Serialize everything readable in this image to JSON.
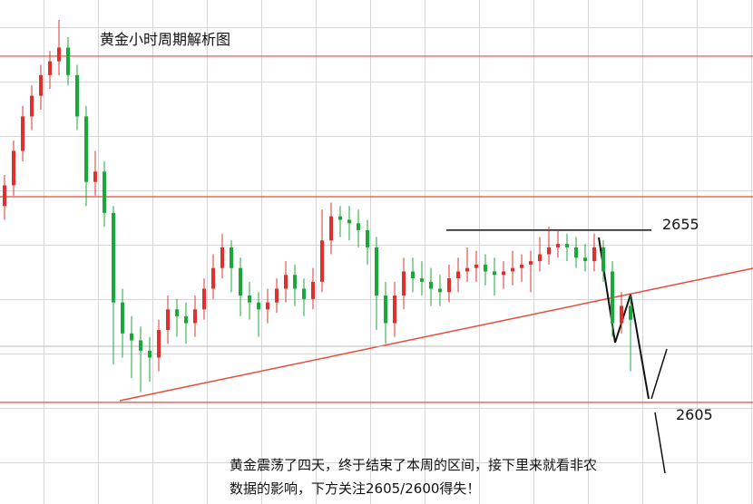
{
  "chart_data": {
    "type": "candlestick",
    "title": "黄金小时周期解析图",
    "annotation": [
      "黄金震荡了四天，终于结束了本周的区间，接下里来就看非农",
      "数据的影响，下方关注2605/2600得失！"
    ],
    "ylim": [
      2575.5,
      2721.8
    ],
    "levels": [
      2655,
      2605
    ],
    "hlines": [
      2705.5,
      2664.7
    ],
    "up_color": "#e0302e",
    "down_color": "#1aa83a",
    "candles": [
      [
        2662,
        2671,
        2658,
        2668
      ],
      [
        2668,
        2681,
        2665,
        2678
      ],
      [
        2678,
        2691,
        2675,
        2688
      ],
      [
        2688,
        2697,
        2684,
        2694
      ],
      [
        2694,
        2703,
        2690,
        2700
      ],
      [
        2700,
        2707,
        2696,
        2704
      ],
      [
        2704,
        2716,
        2700,
        2708
      ],
      [
        2708,
        2711,
        2697,
        2700
      ],
      [
        2700,
        2703,
        2684,
        2688
      ],
      [
        2688,
        2691,
        2662,
        2669
      ],
      [
        2669,
        2678,
        2665,
        2672
      ],
      [
        2672,
        2675,
        2656,
        2660
      ],
      [
        2660,
        2662,
        2616,
        2634
      ],
      [
        2634,
        2638,
        2618,
        2625
      ],
      [
        2625,
        2630,
        2612,
        2623
      ],
      [
        2623,
        2627,
        2608,
        2620
      ],
      [
        2620,
        2624,
        2611,
        2618
      ],
      [
        2618,
        2629,
        2614,
        2626
      ],
      [
        2626,
        2636,
        2622,
        2632
      ],
      [
        2632,
        2635,
        2624,
        2630
      ],
      [
        2630,
        2634,
        2622,
        2628
      ],
      [
        2628,
        2636,
        2624,
        2632
      ],
      [
        2632,
        2641,
        2629,
        2638
      ],
      [
        2638,
        2648,
        2635,
        2644
      ],
      [
        2644,
        2654,
        2641,
        2650
      ],
      [
        2650,
        2652,
        2637,
        2644
      ],
      [
        2644,
        2647,
        2630,
        2636
      ],
      [
        2636,
        2640,
        2629,
        2634
      ],
      [
        2634,
        2637,
        2624,
        2632
      ],
      [
        2632,
        2638,
        2628,
        2634
      ],
      [
        2634,
        2641,
        2631,
        2638
      ],
      [
        2638,
        2646,
        2634,
        2642
      ],
      [
        2642,
        2645,
        2633,
        2638
      ],
      [
        2638,
        2641,
        2630,
        2635
      ],
      [
        2635,
        2644,
        2632,
        2640
      ],
      [
        2640,
        2661,
        2637,
        2652
      ],
      [
        2652,
        2663,
        2648,
        2659
      ],
      [
        2659,
        2662,
        2653,
        2658
      ],
      [
        2658,
        2662,
        2652,
        2657
      ],
      [
        2657,
        2661,
        2650,
        2655
      ],
      [
        2655,
        2658,
        2645,
        2650
      ],
      [
        2650,
        2653,
        2626,
        2636
      ],
      [
        2636,
        2640,
        2622,
        2628
      ],
      [
        2628,
        2640,
        2624,
        2636
      ],
      [
        2636,
        2647,
        2632,
        2643
      ],
      [
        2643,
        2647,
        2637,
        2641
      ],
      [
        2641,
        2646,
        2636,
        2640
      ],
      [
        2640,
        2644,
        2633,
        2638
      ],
      [
        2638,
        2642,
        2633,
        2637
      ],
      [
        2637,
        2645,
        2634,
        2641
      ],
      [
        2641,
        2647,
        2637,
        2643
      ],
      [
        2643,
        2650,
        2640,
        2644
      ],
      [
        2644,
        2649,
        2640,
        2645
      ],
      [
        2645,
        2648,
        2639,
        2643
      ],
      [
        2643,
        2647,
        2636,
        2642
      ],
      [
        2642,
        2646,
        2638,
        2643
      ],
      [
        2643,
        2649,
        2639,
        2644
      ],
      [
        2644,
        2648,
        2640,
        2645
      ],
      [
        2645,
        2649,
        2637,
        2646
      ],
      [
        2646,
        2653,
        2643,
        2648
      ],
      [
        2648,
        2656,
        2645,
        2650
      ],
      [
        2650,
        2655,
        2647,
        2651
      ],
      [
        2651,
        2654,
        2646,
        2650
      ],
      [
        2650,
        2653,
        2644,
        2647
      ],
      [
        2647,
        2651,
        2643,
        2646
      ],
      [
        2646,
        2654,
        2643,
        2650
      ],
      [
        2650,
        2652,
        2640,
        2643
      ],
      [
        2643,
        2646,
        2624,
        2628
      ],
      [
        2628,
        2637,
        2625,
        2633
      ],
      [
        2633,
        2636,
        2614,
        2629
      ]
    ]
  }
}
